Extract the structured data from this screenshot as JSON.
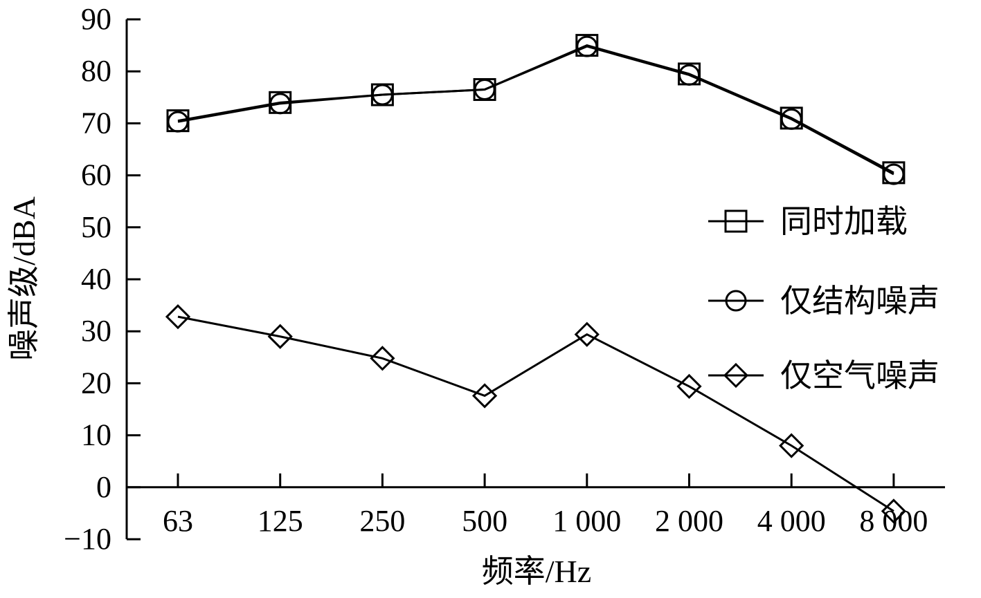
{
  "chart_data": {
    "type": "line",
    "xlabel": "频率/Hz",
    "ylabel": "噪声级/dBA",
    "categories": [
      "63",
      "125",
      "250",
      "500",
      "1 000",
      "2 000",
      "4 000",
      "8 000"
    ],
    "ylim": [
      -10,
      90
    ],
    "yticks": [
      -10,
      0,
      10,
      20,
      30,
      40,
      50,
      60,
      70,
      80,
      90
    ],
    "ytick_labels": [
      "−10",
      "0",
      "10",
      "20",
      "30",
      "40",
      "50",
      "60",
      "70",
      "80",
      "90"
    ],
    "grid": false,
    "legend_position": "right",
    "series": [
      {
        "name": "同时加载",
        "marker": "square",
        "values": [
          70.5,
          74,
          75.5,
          76.5,
          85,
          79.5,
          71,
          60.5
        ]
      },
      {
        "name": "仅结构噪声",
        "marker": "circle",
        "values": [
          70.3,
          73.8,
          75.5,
          76.5,
          84.8,
          79.3,
          70.8,
          60.2
        ]
      },
      {
        "name": "仅空气噪声",
        "marker": "diamond",
        "values": [
          32.8,
          29,
          24.8,
          17.6,
          29.4,
          19.4,
          8,
          -4.6
        ]
      }
    ]
  }
}
